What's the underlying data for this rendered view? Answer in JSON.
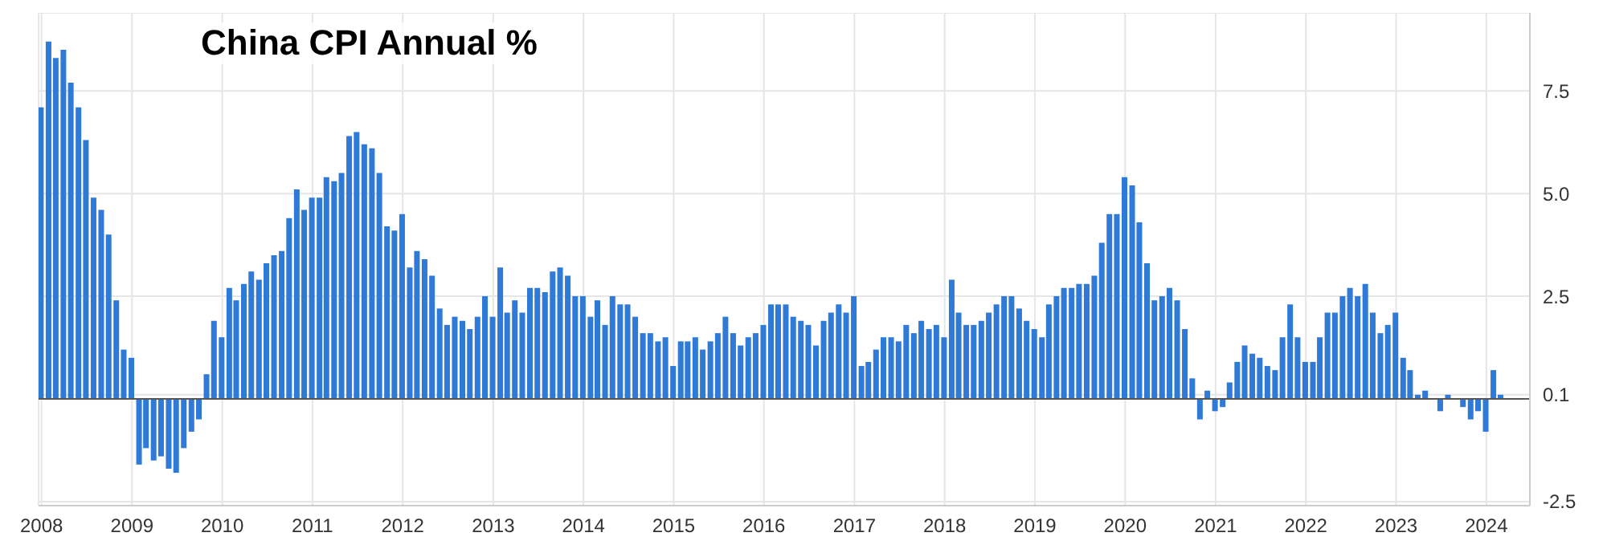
{
  "chart_data": {
    "type": "bar",
    "title": "China CPI Annual %",
    "x": [
      "2008-01",
      "2008-02",
      "2008-03",
      "2008-04",
      "2008-05",
      "2008-06",
      "2008-07",
      "2008-08",
      "2008-09",
      "2008-10",
      "2008-11",
      "2008-12",
      "2009-01",
      "2009-02",
      "2009-03",
      "2009-04",
      "2009-05",
      "2009-06",
      "2009-07",
      "2009-08",
      "2009-09",
      "2009-10",
      "2009-11",
      "2009-12",
      "2010-01",
      "2010-02",
      "2010-03",
      "2010-04",
      "2010-05",
      "2010-06",
      "2010-07",
      "2010-08",
      "2010-09",
      "2010-10",
      "2010-11",
      "2010-12",
      "2011-01",
      "2011-02",
      "2011-03",
      "2011-04",
      "2011-05",
      "2011-06",
      "2011-07",
      "2011-08",
      "2011-09",
      "2011-10",
      "2011-11",
      "2011-12",
      "2012-01",
      "2012-02",
      "2012-03",
      "2012-04",
      "2012-05",
      "2012-06",
      "2012-07",
      "2012-08",
      "2012-09",
      "2012-10",
      "2012-11",
      "2012-12",
      "2013-01",
      "2013-02",
      "2013-03",
      "2013-04",
      "2013-05",
      "2013-06",
      "2013-07",
      "2013-08",
      "2013-09",
      "2013-10",
      "2013-11",
      "2013-12",
      "2014-01",
      "2014-02",
      "2014-03",
      "2014-04",
      "2014-05",
      "2014-06",
      "2014-07",
      "2014-08",
      "2014-09",
      "2014-10",
      "2014-11",
      "2014-12",
      "2015-01",
      "2015-02",
      "2015-03",
      "2015-04",
      "2015-05",
      "2015-06",
      "2015-07",
      "2015-08",
      "2015-09",
      "2015-10",
      "2015-11",
      "2015-12",
      "2016-01",
      "2016-02",
      "2016-03",
      "2016-04",
      "2016-05",
      "2016-06",
      "2016-07",
      "2016-08",
      "2016-09",
      "2016-10",
      "2016-11",
      "2016-12",
      "2017-01",
      "2017-02",
      "2017-03",
      "2017-04",
      "2017-05",
      "2017-06",
      "2017-07",
      "2017-08",
      "2017-09",
      "2017-10",
      "2017-11",
      "2017-12",
      "2018-01",
      "2018-02",
      "2018-03",
      "2018-04",
      "2018-05",
      "2018-06",
      "2018-07",
      "2018-08",
      "2018-09",
      "2018-10",
      "2018-11",
      "2018-12",
      "2019-01",
      "2019-02",
      "2019-03",
      "2019-04",
      "2019-05",
      "2019-06",
      "2019-07",
      "2019-08",
      "2019-09",
      "2019-10",
      "2019-11",
      "2019-12",
      "2020-01",
      "2020-02",
      "2020-03",
      "2020-04",
      "2020-05",
      "2020-06",
      "2020-07",
      "2020-08",
      "2020-09",
      "2020-10",
      "2020-11",
      "2020-12",
      "2021-01",
      "2021-02",
      "2021-03",
      "2021-04",
      "2021-05",
      "2021-06",
      "2021-07",
      "2021-08",
      "2021-09",
      "2021-10",
      "2021-11",
      "2021-12",
      "2022-01",
      "2022-02",
      "2022-03",
      "2022-04",
      "2022-05",
      "2022-06",
      "2022-07",
      "2022-08",
      "2022-09",
      "2022-10",
      "2022-11",
      "2022-12",
      "2023-01",
      "2023-02",
      "2023-03",
      "2023-04",
      "2023-05",
      "2023-06",
      "2023-07",
      "2023-08",
      "2023-09",
      "2023-10",
      "2023-11",
      "2023-12",
      "2024-01",
      "2024-02",
      "2024-03"
    ],
    "values": [
      7.1,
      8.7,
      8.3,
      8.5,
      7.7,
      7.1,
      6.3,
      4.9,
      4.6,
      4.0,
      2.4,
      1.2,
      1.0,
      -1.6,
      -1.2,
      -1.5,
      -1.4,
      -1.7,
      -1.8,
      -1.2,
      -0.8,
      -0.5,
      0.6,
      1.9,
      1.5,
      2.7,
      2.4,
      2.8,
      3.1,
      2.9,
      3.3,
      3.5,
      3.6,
      4.4,
      5.1,
      4.6,
      4.9,
      4.9,
      5.4,
      5.3,
      5.5,
      6.4,
      6.5,
      6.2,
      6.1,
      5.5,
      4.2,
      4.1,
      4.5,
      3.2,
      3.6,
      3.4,
      3.0,
      2.2,
      1.8,
      2.0,
      1.9,
      1.7,
      2.0,
      2.5,
      2.0,
      3.2,
      2.1,
      2.4,
      2.1,
      2.7,
      2.7,
      2.6,
      3.1,
      3.2,
      3.0,
      2.5,
      2.5,
      2.0,
      2.4,
      1.8,
      2.5,
      2.3,
      2.3,
      2.0,
      1.6,
      1.6,
      1.4,
      1.5,
      0.8,
      1.4,
      1.4,
      1.5,
      1.2,
      1.4,
      1.6,
      2.0,
      1.6,
      1.3,
      1.5,
      1.6,
      1.8,
      2.3,
      2.3,
      2.3,
      2.0,
      1.9,
      1.8,
      1.3,
      1.9,
      2.1,
      2.3,
      2.1,
      2.5,
      0.8,
      0.9,
      1.2,
      1.5,
      1.5,
      1.4,
      1.8,
      1.6,
      1.9,
      1.7,
      1.8,
      1.5,
      2.9,
      2.1,
      1.8,
      1.8,
      1.9,
      2.1,
      2.3,
      2.5,
      2.5,
      2.2,
      1.9,
      1.7,
      1.5,
      2.3,
      2.5,
      2.7,
      2.7,
      2.8,
      2.8,
      3.0,
      3.8,
      4.5,
      4.5,
      5.4,
      5.2,
      4.3,
      3.3,
      2.4,
      2.5,
      2.7,
      2.4,
      1.7,
      0.5,
      -0.5,
      0.2,
      -0.3,
      -0.2,
      0.4,
      0.9,
      1.3,
      1.1,
      1.0,
      0.8,
      0.7,
      1.5,
      2.3,
      1.5,
      0.9,
      0.9,
      1.5,
      2.1,
      2.1,
      2.5,
      2.7,
      2.5,
      2.8,
      2.1,
      1.6,
      1.8,
      2.1,
      1.0,
      0.7,
      0.1,
      0.2,
      0.0,
      -0.3,
      0.1,
      0.0,
      -0.2,
      -0.5,
      -0.3,
      -0.8,
      0.7,
      0.1
    ],
    "color": "#2f7ad6",
    "xlim": [
      "2007-12-20",
      "2024-06-25"
    ],
    "xticks": [
      "2008",
      "2009",
      "2010",
      "2011",
      "2012",
      "2013",
      "2014",
      "2015",
      "2016",
      "2017",
      "2018",
      "2019",
      "2020",
      "2021",
      "2022",
      "2023",
      "2024"
    ],
    "ylim": [
      -2.6,
      9.4
    ],
    "yticks": [
      {
        "value": -2.5,
        "label": "-2.5"
      },
      {
        "value": 0.1,
        "label": "0.1"
      },
      {
        "value": 2.5,
        "label": "2.5"
      },
      {
        "value": 5,
        "label": "5.0"
      },
      {
        "value": 7.5,
        "label": "7.5"
      }
    ],
    "grid": true,
    "ref_lines": [
      {
        "axis": "y",
        "value": 0,
        "color": "#555555"
      }
    ]
  }
}
